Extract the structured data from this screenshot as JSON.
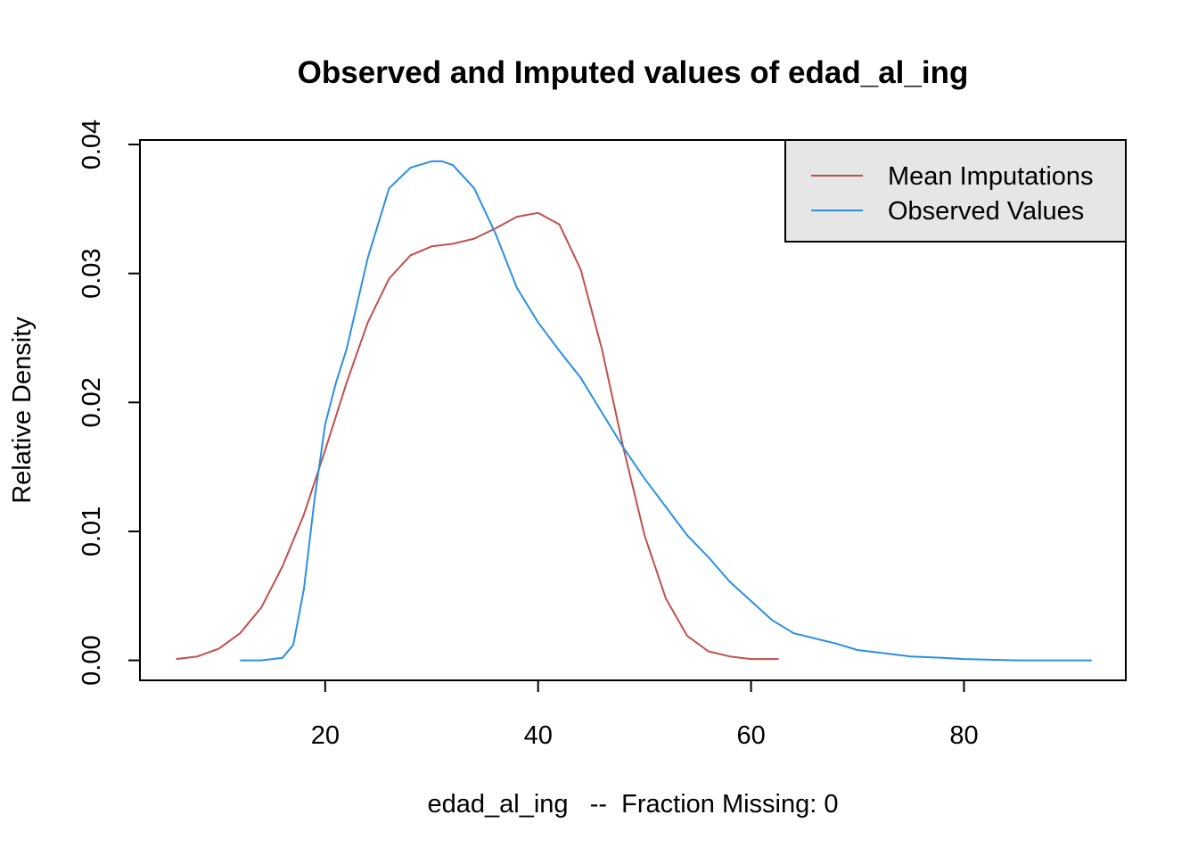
{
  "chart_data": {
    "type": "line",
    "title": "Observed and Imputed values of edad_al_ing",
    "xlabel": "edad_al_ing   --  Fraction Missing: 0",
    "ylabel": "Relative Density",
    "xlim": [
      2.6,
      95.2
    ],
    "ylim": [
      -0.00155,
      0.04035
    ],
    "x_ticks": [
      20,
      40,
      60,
      80
    ],
    "y_ticks": [
      0.0,
      0.01,
      0.02,
      0.03,
      0.04
    ],
    "x_tick_labels": [
      "20",
      "40",
      "60",
      "80"
    ],
    "y_tick_labels": [
      "0.00",
      "0.01",
      "0.02",
      "0.03",
      "0.04"
    ],
    "grid": false,
    "legend": {
      "placement": "top-right",
      "background": "#e6e6e6",
      "entries": [
        "Mean Imputations",
        "Observed Values"
      ]
    },
    "series": [
      {
        "name": "Mean Imputations",
        "color": "#c0504d",
        "x": [
          6,
          8,
          10,
          12,
          14,
          16,
          18,
          20,
          22,
          24,
          26,
          28,
          30,
          32,
          34,
          36,
          38,
          40,
          42,
          44,
          46,
          48,
          50,
          52,
          54,
          56,
          58,
          60,
          62,
          62.6
        ],
        "y": [
          0.0001,
          0.0003,
          0.0009,
          0.0021,
          0.0041,
          0.0073,
          0.0113,
          0.0163,
          0.0215,
          0.0262,
          0.0296,
          0.0314,
          0.0321,
          0.0323,
          0.0327,
          0.0335,
          0.0344,
          0.0347,
          0.0338,
          0.0303,
          0.0241,
          0.0165,
          0.0097,
          0.0048,
          0.0019,
          0.0007,
          0.0003,
          0.0001,
          0.0001,
          0.0001
        ]
      },
      {
        "name": "Observed Values",
        "color": "#2c8fe3",
        "x": [
          12,
          14,
          16,
          17,
          18,
          19,
          20,
          21,
          22,
          24,
          26,
          28,
          30,
          31,
          32,
          34,
          36,
          38,
          40,
          42,
          44,
          46,
          48,
          50,
          52,
          54,
          56,
          58,
          60,
          62,
          64,
          66,
          68,
          70,
          72,
          75,
          78,
          80,
          85,
          92
        ],
        "y": [
          0.0,
          0.0,
          0.0002,
          0.0012,
          0.0055,
          0.0125,
          0.0183,
          0.0215,
          0.0241,
          0.0312,
          0.0366,
          0.0382,
          0.0387,
          0.0387,
          0.0384,
          0.0366,
          0.0331,
          0.0289,
          0.0262,
          0.024,
          0.0219,
          0.0192,
          0.0165,
          0.0141,
          0.0119,
          0.0097,
          0.008,
          0.0061,
          0.0046,
          0.0031,
          0.0021,
          0.0017,
          0.0013,
          0.0008,
          0.0006,
          0.0003,
          0.0002,
          0.0001,
          0.0,
          0.0
        ]
      }
    ]
  }
}
